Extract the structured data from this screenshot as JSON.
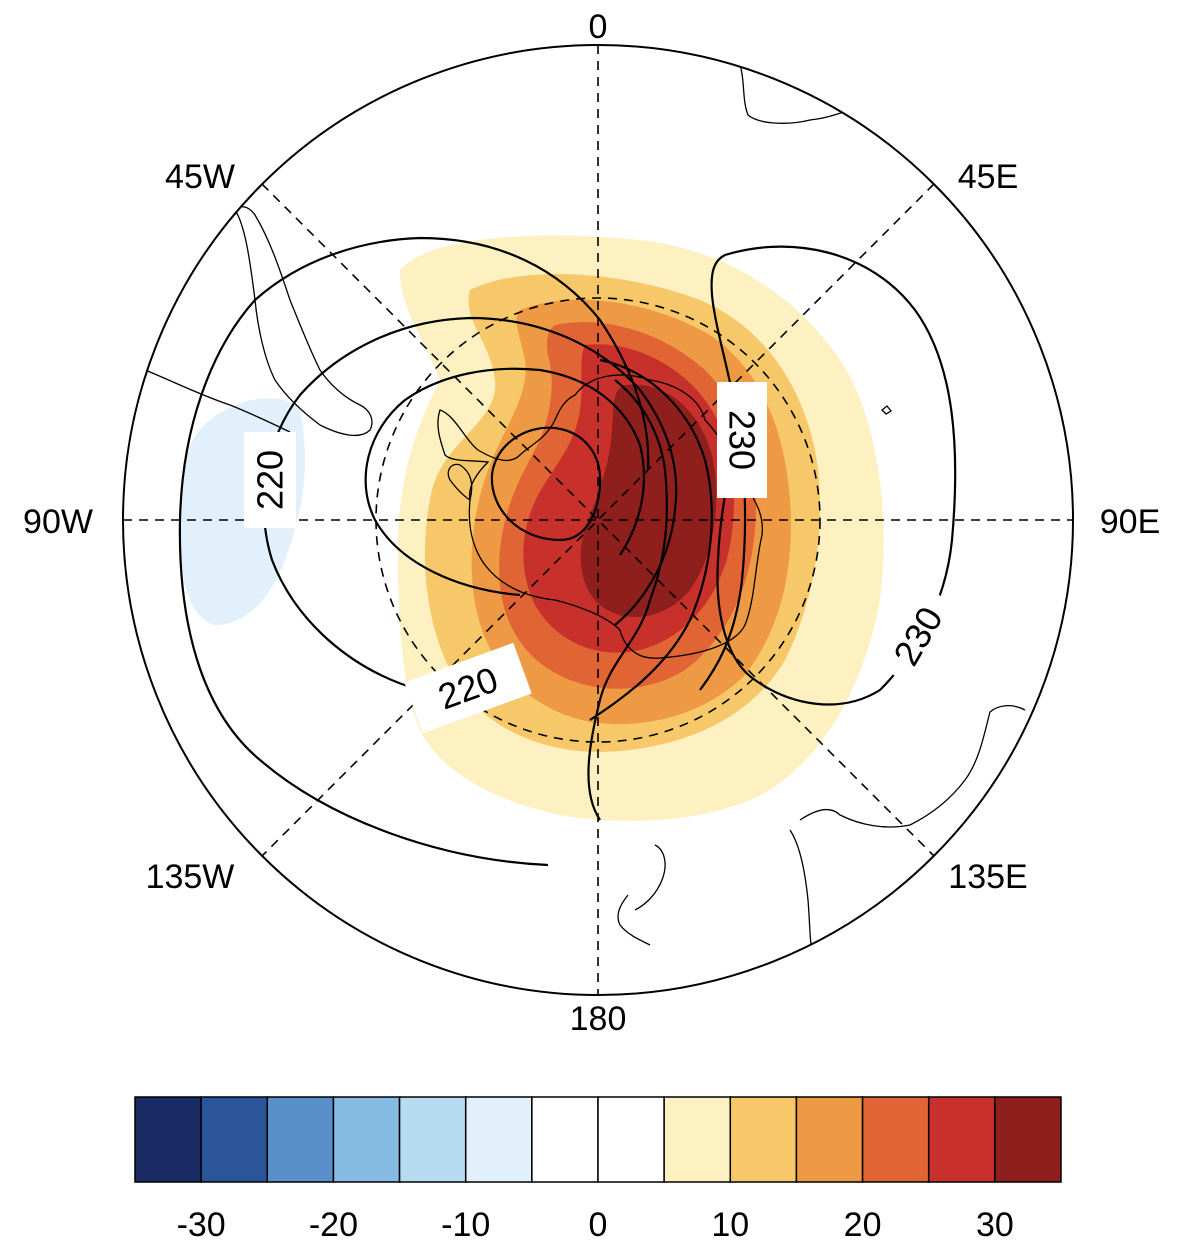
{
  "map": {
    "projection": "south-polar-stereographic",
    "longitude_labels": [
      "0",
      "45E",
      "90E",
      "135E",
      "180",
      "135W",
      "90W",
      "45W"
    ],
    "contour_labels": [
      "220",
      "220",
      "220",
      "230",
      "230"
    ],
    "colorbar": {
      "tick_labels": [
        "-30",
        "-20",
        "-10",
        "0",
        "10",
        "20",
        "30"
      ],
      "colors": [
        "#1a2b63",
        "#2a5599",
        "#5a8fc9",
        "#86bbe4",
        "#b6dcf2",
        "#e1f0fa",
        "#ffffff",
        "#ffffff",
        "#fdf1c2",
        "#f6c86a",
        "#ee9a45",
        "#e06434",
        "#c8302c",
        "#8e1f1d"
      ]
    }
  }
}
